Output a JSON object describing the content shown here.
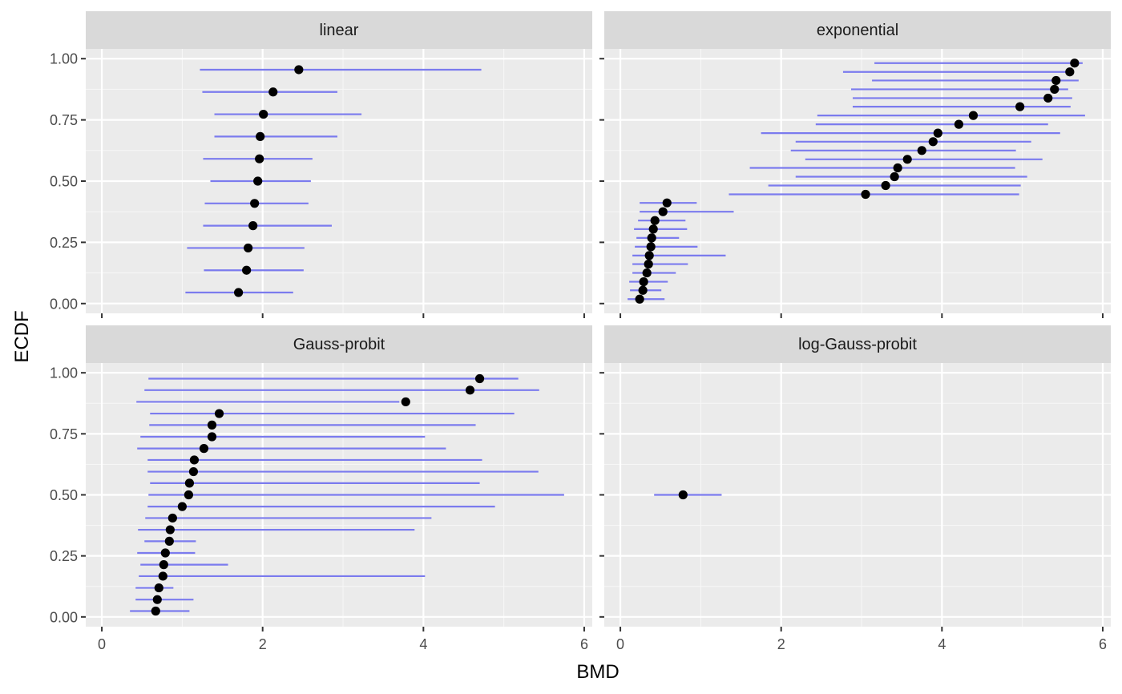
{
  "chart_data": {
    "type": "scatter",
    "xlabel": "BMD",
    "ylabel": "ECDF",
    "xlim": [
      -0.2,
      6.1
    ],
    "ylim": [
      -0.04,
      1.04
    ],
    "x_ticks": [
      "0",
      "2",
      "4",
      "6"
    ],
    "y_ticks": [
      "0.00",
      "0.25",
      "0.50",
      "0.75",
      "1.00"
    ],
    "grid": true,
    "point_color": "#000000",
    "interval_color": "#7b7bee",
    "panel_background": "#ebebeb",
    "strip_background": "#d9d9d9",
    "facets": [
      {
        "name": "linear",
        "points": [
          {
            "bmd": 2.45,
            "ecdf": 0.955,
            "lower": 1.22,
            "upper": 4.72
          },
          {
            "bmd": 2.13,
            "ecdf": 0.864,
            "lower": 1.25,
            "upper": 2.93
          },
          {
            "bmd": 2.01,
            "ecdf": 0.773,
            "lower": 1.4,
            "upper": 3.23
          },
          {
            "bmd": 1.97,
            "ecdf": 0.682,
            "lower": 1.4,
            "upper": 2.93
          },
          {
            "bmd": 1.96,
            "ecdf": 0.591,
            "lower": 1.26,
            "upper": 2.62
          },
          {
            "bmd": 1.94,
            "ecdf": 0.5,
            "lower": 1.35,
            "upper": 2.6
          },
          {
            "bmd": 1.9,
            "ecdf": 0.409,
            "lower": 1.28,
            "upper": 2.57
          },
          {
            "bmd": 1.88,
            "ecdf": 0.318,
            "lower": 1.26,
            "upper": 2.86
          },
          {
            "bmd": 1.82,
            "ecdf": 0.227,
            "lower": 1.06,
            "upper": 2.52
          },
          {
            "bmd": 1.8,
            "ecdf": 0.136,
            "lower": 1.27,
            "upper": 2.51
          },
          {
            "bmd": 1.7,
            "ecdf": 0.045,
            "lower": 1.04,
            "upper": 2.38
          }
        ]
      },
      {
        "name": "exponential",
        "points": [
          {
            "bmd": 5.65,
            "ecdf": 0.982,
            "lower": 3.16,
            "upper": 5.75
          },
          {
            "bmd": 5.59,
            "ecdf": 0.946,
            "lower": 2.77,
            "upper": 5.63
          },
          {
            "bmd": 5.42,
            "ecdf": 0.911,
            "lower": 3.13,
            "upper": 5.7
          },
          {
            "bmd": 5.4,
            "ecdf": 0.875,
            "lower": 2.87,
            "upper": 5.57
          },
          {
            "bmd": 5.32,
            "ecdf": 0.839,
            "lower": 2.89,
            "upper": 5.62
          },
          {
            "bmd": 4.97,
            "ecdf": 0.804,
            "lower": 2.89,
            "upper": 5.6
          },
          {
            "bmd": 4.39,
            "ecdf": 0.768,
            "lower": 2.45,
            "upper": 5.78
          },
          {
            "bmd": 4.21,
            "ecdf": 0.732,
            "lower": 2.43,
            "upper": 5.32
          },
          {
            "bmd": 3.95,
            "ecdf": 0.696,
            "lower": 1.75,
            "upper": 5.47
          },
          {
            "bmd": 3.89,
            "ecdf": 0.661,
            "lower": 2.18,
            "upper": 5.11
          },
          {
            "bmd": 3.75,
            "ecdf": 0.625,
            "lower": 2.12,
            "upper": 4.92
          },
          {
            "bmd": 3.57,
            "ecdf": 0.589,
            "lower": 2.3,
            "upper": 5.25
          },
          {
            "bmd": 3.45,
            "ecdf": 0.554,
            "lower": 1.61,
            "upper": 4.91
          },
          {
            "bmd": 3.41,
            "ecdf": 0.518,
            "lower": 2.18,
            "upper": 5.06
          },
          {
            "bmd": 3.3,
            "ecdf": 0.482,
            "lower": 1.84,
            "upper": 4.98
          },
          {
            "bmd": 3.05,
            "ecdf": 0.446,
            "lower": 1.35,
            "upper": 4.96
          },
          {
            "bmd": 0.58,
            "ecdf": 0.411,
            "lower": 0.24,
            "upper": 0.95
          },
          {
            "bmd": 0.53,
            "ecdf": 0.375,
            "lower": 0.24,
            "upper": 1.41
          },
          {
            "bmd": 0.43,
            "ecdf": 0.339,
            "lower": 0.22,
            "upper": 0.81
          },
          {
            "bmd": 0.41,
            "ecdf": 0.304,
            "lower": 0.17,
            "upper": 0.83
          },
          {
            "bmd": 0.39,
            "ecdf": 0.268,
            "lower": 0.2,
            "upper": 0.73
          },
          {
            "bmd": 0.38,
            "ecdf": 0.232,
            "lower": 0.18,
            "upper": 0.96
          },
          {
            "bmd": 0.36,
            "ecdf": 0.196,
            "lower": 0.15,
            "upper": 1.31
          },
          {
            "bmd": 0.35,
            "ecdf": 0.161,
            "lower": 0.15,
            "upper": 0.84
          },
          {
            "bmd": 0.33,
            "ecdf": 0.125,
            "lower": 0.15,
            "upper": 0.69
          },
          {
            "bmd": 0.29,
            "ecdf": 0.089,
            "lower": 0.11,
            "upper": 0.59
          },
          {
            "bmd": 0.28,
            "ecdf": 0.054,
            "lower": 0.12,
            "upper": 0.51
          },
          {
            "bmd": 0.24,
            "ecdf": 0.018,
            "lower": 0.09,
            "upper": 0.55
          }
        ]
      },
      {
        "name": "Gauss-probit",
        "points": [
          {
            "bmd": 4.7,
            "ecdf": 0.976,
            "lower": 0.58,
            "upper": 5.18
          },
          {
            "bmd": 4.58,
            "ecdf": 0.929,
            "lower": 0.53,
            "upper": 5.44
          },
          {
            "bmd": 3.78,
            "ecdf": 0.881,
            "lower": 0.43,
            "upper": 3.7
          },
          {
            "bmd": 1.46,
            "ecdf": 0.833,
            "lower": 0.6,
            "upper": 5.13
          },
          {
            "bmd": 1.37,
            "ecdf": 0.786,
            "lower": 0.59,
            "upper": 4.65
          },
          {
            "bmd": 1.37,
            "ecdf": 0.738,
            "lower": 0.48,
            "upper": 4.02
          },
          {
            "bmd": 1.27,
            "ecdf": 0.69,
            "lower": 0.44,
            "upper": 4.28
          },
          {
            "bmd": 1.15,
            "ecdf": 0.643,
            "lower": 0.57,
            "upper": 4.73
          },
          {
            "bmd": 1.14,
            "ecdf": 0.595,
            "lower": 0.57,
            "upper": 5.43
          },
          {
            "bmd": 1.09,
            "ecdf": 0.548,
            "lower": 0.6,
            "upper": 4.7
          },
          {
            "bmd": 1.08,
            "ecdf": 0.5,
            "lower": 0.58,
            "upper": 5.75
          },
          {
            "bmd": 1.0,
            "ecdf": 0.452,
            "lower": 0.57,
            "upper": 4.89
          },
          {
            "bmd": 0.88,
            "ecdf": 0.405,
            "lower": 0.54,
            "upper": 4.1
          },
          {
            "bmd": 0.85,
            "ecdf": 0.357,
            "lower": 0.45,
            "upper": 3.89
          },
          {
            "bmd": 0.84,
            "ecdf": 0.31,
            "lower": 0.53,
            "upper": 1.17
          },
          {
            "bmd": 0.79,
            "ecdf": 0.262,
            "lower": 0.44,
            "upper": 1.16
          },
          {
            "bmd": 0.77,
            "ecdf": 0.214,
            "lower": 0.48,
            "upper": 1.57
          },
          {
            "bmd": 0.76,
            "ecdf": 0.167,
            "lower": 0.46,
            "upper": 4.02
          },
          {
            "bmd": 0.71,
            "ecdf": 0.119,
            "lower": 0.42,
            "upper": 0.89
          },
          {
            "bmd": 0.69,
            "ecdf": 0.071,
            "lower": 0.42,
            "upper": 1.14
          },
          {
            "bmd": 0.67,
            "ecdf": 0.024,
            "lower": 0.35,
            "upper": 1.09
          }
        ]
      },
      {
        "name": "log-Gauss-probit",
        "points": [
          {
            "bmd": 0.78,
            "ecdf": 0.5,
            "lower": 0.42,
            "upper": 1.26
          }
        ]
      }
    ]
  }
}
